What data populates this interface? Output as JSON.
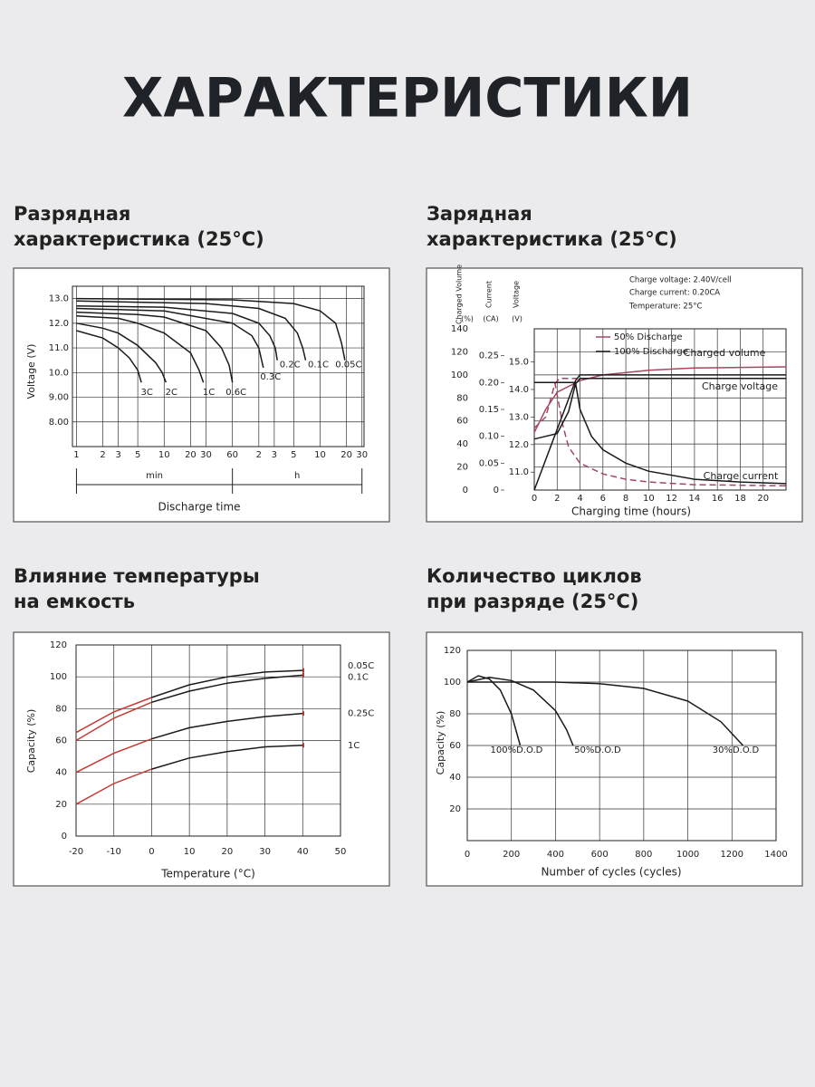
{
  "title": "ХАРАКТЕРИСТИКИ",
  "chart_data": [
    {
      "type": "line",
      "title": [
        "Разрядная",
        "характеристика (25°C)"
      ],
      "xlabel": "Discharge time",
      "ylabel": "Voltage (V)",
      "x_units": [
        "min",
        "h"
      ],
      "x_log": true,
      "grid": true,
      "xlim": [
        0.9,
        1900
      ],
      "xticks": [
        1,
        2,
        3,
        5,
        10,
        20,
        30,
        60,
        {
          "value": 120,
          "label": "2"
        },
        {
          "value": 180,
          "label": "3"
        },
        {
          "value": 300,
          "label": "5"
        },
        {
          "value": 600,
          "label": "10"
        },
        {
          "value": 1200,
          "label": "20"
        },
        {
          "value": 1800,
          "label": "30"
        }
      ],
      "ylim": [
        7,
        13.5
      ],
      "yticks": [
        {
          "value": 8,
          "label": "8.00"
        },
        {
          "value": 9,
          "label": "9.00"
        },
        {
          "value": 10,
          "label": "10.0"
        },
        {
          "value": 11,
          "label": "11.0"
        },
        {
          "value": 12,
          "label": "12.0"
        },
        {
          "value": 13,
          "label": "13.0"
        }
      ],
      "series": [
        {
          "name": "3C",
          "color": "#1a1a1a",
          "x": [
            1,
            2,
            3,
            4,
            5,
            5.5
          ],
          "values": [
            11.7,
            11.4,
            11.0,
            10.6,
            10.1,
            9.6
          ]
        },
        {
          "name": "2C",
          "color": "#1a1a1a",
          "x": [
            1,
            2,
            3,
            5,
            8,
            9.5,
            10.5
          ],
          "values": [
            12.0,
            11.8,
            11.6,
            11.1,
            10.4,
            10.0,
            9.6
          ]
        },
        {
          "name": "1C",
          "color": "#1a1a1a",
          "x": [
            1,
            3,
            5,
            10,
            20,
            25,
            28
          ],
          "values": [
            12.3,
            12.2,
            12.0,
            11.6,
            10.8,
            10.1,
            9.6
          ]
        },
        {
          "name": "0.6C",
          "color": "#1a1a1a",
          "x": [
            1,
            5,
            10,
            30,
            45,
            55,
            60
          ],
          "values": [
            12.45,
            12.35,
            12.25,
            11.7,
            11.0,
            10.3,
            9.6
          ]
        },
        {
          "name": "0.3C",
          "color": "#1a1a1a",
          "x": [
            1,
            10,
            60,
            100,
            120,
            135
          ],
          "values": [
            12.6,
            12.5,
            12.0,
            11.5,
            11.0,
            10.2
          ]
        },
        {
          "name": "0.2C",
          "color": "#1a1a1a",
          "x": [
            1,
            10,
            60,
            120,
            160,
            185,
            195
          ],
          "values": [
            12.7,
            12.65,
            12.4,
            12.0,
            11.5,
            11.0,
            10.5
          ]
        },
        {
          "name": "0.1C",
          "color": "#1a1a1a",
          "x": [
            1,
            30,
            120,
            240,
            330,
            380,
            410
          ],
          "values": [
            12.9,
            12.8,
            12.6,
            12.2,
            11.6,
            11.0,
            10.5
          ]
        },
        {
          "name": "0.05C",
          "color": "#1a1a1a",
          "x": [
            1,
            60,
            300,
            600,
            900,
            1050,
            1150
          ],
          "values": [
            13.0,
            12.95,
            12.8,
            12.5,
            12.0,
            11.2,
            10.5
          ]
        }
      ]
    },
    {
      "type": "line",
      "title": [
        "Зарядная",
        "характеристика (25°C)"
      ],
      "xlabel": "Charging time (hours)",
      "y_headers": [
        "Charged Volume",
        "Current",
        "Voltage"
      ],
      "y_units": [
        "(%)",
        "(CA)",
        "(V)"
      ],
      "notes": [
        "Charge voltage: 2.40V/cell",
        "Charge current: 0.20CA",
        "Temperature: 25°C"
      ],
      "annotations": [
        "Charged volume",
        "Charge voltage",
        "Charge current"
      ],
      "grid": true,
      "xlim": [
        0,
        22
      ],
      "xticks": [
        0,
        2,
        4,
        6,
        8,
        10,
        12,
        14,
        16,
        18,
        20
      ],
      "ylim": [
        0,
        140
      ],
      "yticks": [
        0,
        20,
        40,
        60,
        80,
        100,
        120,
        140
      ],
      "y2lim": [
        0,
        0.3
      ],
      "y2ticks": [
        0,
        0.05,
        {
          "value": 0.1,
          "label": "0.10"
        },
        0.15,
        {
          "value": 0.2,
          "label": "0.20"
        },
        0.25
      ],
      "y3lim": [
        10.35,
        16.2
      ],
      "y3ticks": [
        {
          "value": 11,
          "label": "11.0"
        },
        {
          "value": 12,
          "label": "12.0"
        },
        {
          "value": 13,
          "label": "13.0"
        },
        {
          "value": 14,
          "label": "14.0"
        },
        {
          "value": 15,
          "label": "15.0"
        }
      ],
      "series": [
        {
          "name": "50% Discharge",
          "color": "#a5485f",
          "axis": "y",
          "dash": false,
          "x": [
            0,
            1,
            2,
            4,
            6,
            10,
            14,
            22
          ],
          "values": [
            50,
            70,
            85,
            95,
            100,
            104,
            106,
            107
          ]
        },
        {
          "name": "50% Discharge",
          "color": "#a5485f",
          "axis": "y3",
          "dash": true,
          "x": [
            0,
            1,
            1.8,
            2.2,
            22
          ],
          "values": [
            12.6,
            13.0,
            14.2,
            14.4,
            14.4
          ]
        },
        {
          "name": "50% Discharge",
          "color": "#a5485f",
          "axis": "y2",
          "dash": true,
          "x": [
            0,
            1.8,
            2.5,
            3,
            4,
            6,
            8,
            10,
            14,
            22
          ],
          "values": [
            0.2,
            0.2,
            0.12,
            0.08,
            0.05,
            0.03,
            0.02,
            0.015,
            0.01,
            0.008
          ]
        },
        {
          "name": "100% Discharge",
          "color": "#1a1a1a",
          "axis": "y",
          "dash": false,
          "x": [
            0,
            3.6,
            4,
            22
          ],
          "values": [
            0,
            95,
            100,
            100
          ]
        },
        {
          "name": "100% Discharge",
          "color": "#1a1a1a",
          "axis": "y3",
          "dash": false,
          "x": [
            0,
            2,
            3,
            3.6,
            4,
            22
          ],
          "values": [
            12.2,
            12.4,
            13.2,
            14.2,
            14.4,
            14.4
          ]
        },
        {
          "name": "100% Discharge",
          "color": "#1a1a1a",
          "axis": "y2",
          "dash": false,
          "x": [
            0,
            3.6,
            4,
            5,
            6,
            8,
            10,
            14,
            18,
            22
          ],
          "values": [
            0.2,
            0.2,
            0.15,
            0.1,
            0.075,
            0.05,
            0.035,
            0.02,
            0.015,
            0.012
          ]
        }
      ]
    },
    {
      "type": "line",
      "title": [
        "Влияние температуры",
        "на емкость"
      ],
      "xlabel": "Temperature (°C)",
      "ylabel": "Capacity (%)",
      "grid": true,
      "xlim": [
        -20,
        50
      ],
      "xticks": [
        -20,
        -10,
        0,
        10,
        20,
        30,
        40,
        50
      ],
      "ylim": [
        0,
        120
      ],
      "yticks": [
        0,
        20,
        40,
        60,
        80,
        100,
        120
      ],
      "series": [
        {
          "name": "0.05C",
          "color": "#c63a32",
          "x": [
            -20,
            -10,
            0
          ],
          "values": [
            65,
            78,
            87
          ]
        },
        {
          "name": "0.05C",
          "color": "#1a1a1a",
          "x": [
            0,
            10,
            20,
            30,
            40
          ],
          "values": [
            87,
            95,
            100,
            103,
            104
          ]
        },
        {
          "name": "0.1C",
          "color": "#c63a32",
          "x": [
            -20,
            -10,
            0
          ],
          "values": [
            60,
            74,
            84
          ]
        },
        {
          "name": "0.1C",
          "color": "#1a1a1a",
          "x": [
            0,
            10,
            20,
            30,
            40
          ],
          "values": [
            84,
            91,
            96,
            99,
            101
          ]
        },
        {
          "name": "0.25C",
          "color": "#c63a32",
          "x": [
            -20,
            -10,
            0
          ],
          "values": [
            40,
            52,
            61
          ]
        },
        {
          "name": "0.25C",
          "color": "#1a1a1a",
          "x": [
            0,
            10,
            20,
            30,
            40
          ],
          "values": [
            61,
            68,
            72,
            75,
            77
          ]
        },
        {
          "name": "1C",
          "color": "#c63a32",
          "x": [
            -20,
            -10,
            0
          ],
          "values": [
            20,
            33,
            42
          ]
        },
        {
          "name": "1C",
          "color": "#1a1a1a",
          "x": [
            0,
            10,
            20,
            30,
            40
          ],
          "values": [
            42,
            49,
            53,
            56,
            57
          ]
        }
      ]
    },
    {
      "type": "line",
      "title": [
        "Количество циклов",
        "при разряде (25°C)"
      ],
      "xlabel": "Number of cycles (cycles)",
      "ylabel": "Capacity (%)",
      "grid": true,
      "xlim": [
        0,
        1400
      ],
      "xticks": [
        0,
        200,
        400,
        600,
        800,
        1000,
        1200,
        1400
      ],
      "ylim": [
        0,
        120
      ],
      "yticks": [
        20,
        40,
        60,
        80,
        100,
        120
      ],
      "series": [
        {
          "name": "100%D.O.D",
          "color": "#1a1a1a",
          "x": [
            0,
            50,
            100,
            150,
            200,
            220,
            240
          ],
          "values": [
            100,
            104,
            102,
            95,
            80,
            70,
            60
          ]
        },
        {
          "name": "50%D.O.D",
          "color": "#1a1a1a",
          "x": [
            0,
            100,
            200,
            300,
            400,
            450,
            480
          ],
          "values": [
            100,
            103,
            101,
            95,
            82,
            70,
            60
          ]
        },
        {
          "name": "30%D.O.D",
          "color": "#1a1a1a",
          "x": [
            0,
            200,
            400,
            600,
            800,
            1000,
            1150,
            1250
          ],
          "values": [
            100,
            100,
            100,
            99,
            96,
            88,
            75,
            60
          ]
        }
      ]
    }
  ]
}
